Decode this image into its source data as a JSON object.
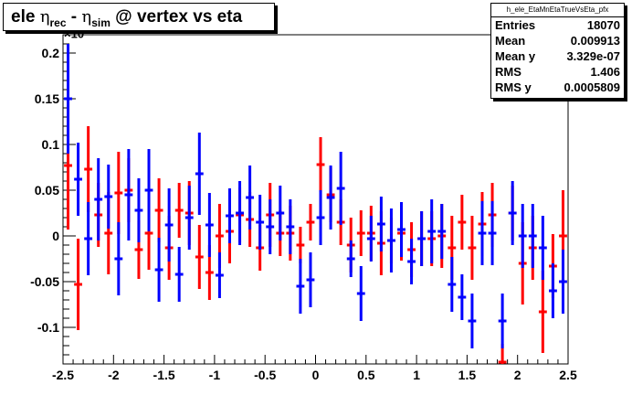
{
  "title": {
    "prefix": "ele ",
    "eta1": "η",
    "sub1": "rec",
    "mid": " - ",
    "eta2": "η",
    "sub2": "sim",
    "suffix": " @ vertex vs eta"
  },
  "stats": {
    "name": "h_ele_EtaMnEtaTrueVsEta_pfx",
    "rows": [
      {
        "label": "Entries",
        "value": "18070"
      },
      {
        "label": "Mean",
        "value": "0.009913"
      },
      {
        "label": "Mean y",
        "value": "3.329e-07"
      },
      {
        "label": "RMS",
        "value": "1.406"
      },
      {
        "label": "RMS y",
        "value": "0.0005809"
      }
    ]
  },
  "axis_multiplier": {
    "base": "×10",
    "exp": "-3"
  },
  "colors": {
    "series_a": "#ff0000",
    "series_b": "#0000ff",
    "frame": "#000000"
  },
  "chart_data": {
    "type": "scatter",
    "xlim": [
      -2.5,
      2.5
    ],
    "ylim": [
      -0.14,
      0.22
    ],
    "xticks": [
      "-2.5",
      "-2",
      "-1.5",
      "-1",
      "-0.5",
      "0",
      "0.5",
      "1",
      "1.5",
      "2",
      "2.5"
    ],
    "xtick_values": [
      -2.5,
      -2,
      -1.5,
      -1,
      -0.5,
      0,
      0.5,
      1,
      1.5,
      2,
      2.5
    ],
    "yticks": [
      "-0.1",
      "-0.05",
      "0",
      "0.05",
      "0.1",
      "0.15",
      "0.2"
    ],
    "ytick_values": [
      -0.1,
      -0.05,
      0,
      0.05,
      0.1,
      0.15,
      0.2
    ],
    "grid": false,
    "series": [
      {
        "color": "#ff0000",
        "points": [
          {
            "x": -2.45,
            "y": 0.077,
            "err": 0.07
          },
          {
            "x": -2.35,
            "y": -0.053,
            "err": 0.05
          },
          {
            "x": -2.25,
            "y": 0.073,
            "err": 0.047
          },
          {
            "x": -2.15,
            "y": 0.023,
            "err": 0.035
          },
          {
            "x": -2.05,
            "y": 0.003,
            "err": 0.045
          },
          {
            "x": -1.95,
            "y": 0.047,
            "err": 0.045
          },
          {
            "x": -1.85,
            "y": 0.05,
            "err": 0.035
          },
          {
            "x": -1.75,
            "y": -0.015,
            "err": 0.032
          },
          {
            "x": -1.65,
            "y": 0.003,
            "err": 0.04
          },
          {
            "x": -1.55,
            "y": 0.028,
            "err": 0.035
          },
          {
            "x": -1.45,
            "y": -0.013,
            "err": 0.035
          },
          {
            "x": -1.35,
            "y": 0.028,
            "err": 0.03
          },
          {
            "x": -1.25,
            "y": 0.025,
            "err": 0.035
          },
          {
            "x": -1.15,
            "y": -0.023,
            "err": 0.035
          },
          {
            "x": -1.05,
            "y": -0.04,
            "err": 0.03
          },
          {
            "x": -0.95,
            "y": 0.0,
            "err": 0.035
          },
          {
            "x": -0.85,
            "y": 0.005,
            "err": 0.035
          },
          {
            "x": -0.75,
            "y": 0.023,
            "err": 0.03
          },
          {
            "x": -0.65,
            "y": 0.018,
            "err": 0.03
          },
          {
            "x": -0.55,
            "y": -0.013,
            "err": 0.025
          },
          {
            "x": -0.45,
            "y": 0.023,
            "err": 0.035
          },
          {
            "x": -0.35,
            "y": 0.003,
            "err": 0.025
          },
          {
            "x": -0.25,
            "y": 0.003,
            "err": 0.03
          },
          {
            "x": -0.15,
            "y": -0.01,
            "err": 0.02
          },
          {
            "x": -0.05,
            "y": 0.015,
            "err": 0.02
          },
          {
            "x": 0.05,
            "y": 0.078,
            "err": 0.03
          },
          {
            "x": 0.15,
            "y": 0.045,
            "err": 0.03
          },
          {
            "x": 0.25,
            "y": 0.015,
            "err": 0.025
          },
          {
            "x": 0.35,
            "y": -0.01,
            "err": 0.03
          },
          {
            "x": 0.45,
            "y": 0.003,
            "err": 0.025
          },
          {
            "x": 0.55,
            "y": 0.003,
            "err": 0.03
          },
          {
            "x": 0.65,
            "y": -0.008,
            "err": 0.035
          },
          {
            "x": 0.75,
            "y": -0.005,
            "err": 0.025
          },
          {
            "x": 0.85,
            "y": 0.003,
            "err": 0.03
          },
          {
            "x": 0.95,
            "y": -0.015,
            "err": 0.03
          },
          {
            "x": 1.05,
            "y": -0.003,
            "err": 0.03
          },
          {
            "x": 1.15,
            "y": -0.003,
            "err": 0.03
          },
          {
            "x": 1.25,
            "y": 0.0,
            "err": 0.035
          },
          {
            "x": 1.35,
            "y": -0.013,
            "err": 0.035
          },
          {
            "x": 1.45,
            "y": 0.015,
            "err": 0.03
          },
          {
            "x": 1.55,
            "y": -0.013,
            "err": 0.035
          },
          {
            "x": 1.65,
            "y": 0.013,
            "err": 0.035
          },
          {
            "x": 1.75,
            "y": 0.023,
            "err": 0.035
          },
          {
            "x": 1.85,
            "y": -0.138,
            "err": 0.02
          },
          {
            "x": 1.95,
            "y": 0.025,
            "err": 0.03
          },
          {
            "x": 2.05,
            "y": -0.03,
            "err": 0.045
          },
          {
            "x": 2.15,
            "y": -0.013,
            "err": 0.035
          },
          {
            "x": 2.25,
            "y": -0.083,
            "err": 0.045
          },
          {
            "x": 2.35,
            "y": -0.033,
            "err": 0.035
          },
          {
            "x": 2.45,
            "y": 0.0,
            "err": 0.05
          }
        ]
      },
      {
        "color": "#0000ff",
        "points": [
          {
            "x": -2.45,
            "y": 0.15,
            "err": 0.06
          },
          {
            "x": -2.35,
            "y": 0.062,
            "err": 0.04
          },
          {
            "x": -2.25,
            "y": -0.003,
            "err": 0.04
          },
          {
            "x": -2.15,
            "y": 0.04,
            "err": 0.045
          },
          {
            "x": -2.05,
            "y": 0.043,
            "err": 0.035
          },
          {
            "x": -1.95,
            "y": -0.025,
            "err": 0.04
          },
          {
            "x": -1.85,
            "y": 0.045,
            "err": 0.05
          },
          {
            "x": -1.75,
            "y": 0.028,
            "err": 0.035
          },
          {
            "x": -1.65,
            "y": 0.05,
            "err": 0.045
          },
          {
            "x": -1.55,
            "y": -0.037,
            "err": 0.035
          },
          {
            "x": -1.45,
            "y": 0.012,
            "err": 0.04
          },
          {
            "x": -1.35,
            "y": -0.042,
            "err": 0.03
          },
          {
            "x": -1.25,
            "y": 0.02,
            "err": 0.035
          },
          {
            "x": -1.15,
            "y": 0.068,
            "err": 0.045
          },
          {
            "x": -1.05,
            "y": 0.012,
            "err": 0.035
          },
          {
            "x": -0.95,
            "y": -0.043,
            "err": 0.025
          },
          {
            "x": -0.85,
            "y": 0.022,
            "err": 0.03
          },
          {
            "x": -0.75,
            "y": 0.025,
            "err": 0.035
          },
          {
            "x": -0.65,
            "y": 0.042,
            "err": 0.035
          },
          {
            "x": -0.55,
            "y": 0.015,
            "err": 0.03
          },
          {
            "x": -0.45,
            "y": 0.01,
            "err": 0.03
          },
          {
            "x": -0.35,
            "y": 0.025,
            "err": 0.03
          },
          {
            "x": -0.25,
            "y": 0.01,
            "err": 0.03
          },
          {
            "x": -0.15,
            "y": -0.055,
            "err": 0.03
          },
          {
            "x": -0.05,
            "y": -0.048,
            "err": 0.03
          },
          {
            "x": 0.05,
            "y": 0.02,
            "err": 0.03
          },
          {
            "x": 0.15,
            "y": 0.042,
            "err": 0.035
          },
          {
            "x": 0.25,
            "y": 0.052,
            "err": 0.04
          },
          {
            "x": 0.35,
            "y": -0.025,
            "err": 0.02
          },
          {
            "x": 0.45,
            "y": -0.063,
            "err": 0.03
          },
          {
            "x": 0.55,
            "y": -0.003,
            "err": 0.025
          },
          {
            "x": 0.65,
            "y": 0.013,
            "err": 0.03
          },
          {
            "x": 0.75,
            "y": -0.005,
            "err": 0.035
          },
          {
            "x": 0.85,
            "y": 0.007,
            "err": 0.03
          },
          {
            "x": 0.95,
            "y": -0.028,
            "err": 0.025
          },
          {
            "x": 1.05,
            "y": -0.003,
            "err": 0.03
          },
          {
            "x": 1.15,
            "y": 0.005,
            "err": 0.035
          },
          {
            "x": 1.25,
            "y": 0.005,
            "err": 0.03
          },
          {
            "x": 1.35,
            "y": -0.053,
            "err": 0.03
          },
          {
            "x": 1.45,
            "y": -0.067,
            "err": 0.025
          },
          {
            "x": 1.55,
            "y": -0.093,
            "err": 0.03
          },
          {
            "x": 1.65,
            "y": 0.003,
            "err": 0.035
          },
          {
            "x": 1.75,
            "y": 0.003,
            "err": 0.035
          },
          {
            "x": 1.85,
            "y": -0.093,
            "err": 0.03
          },
          {
            "x": 1.95,
            "y": 0.025,
            "err": 0.035
          },
          {
            "x": 2.05,
            "y": 0.0,
            "err": 0.035
          },
          {
            "x": 2.15,
            "y": 0.0,
            "err": 0.035
          },
          {
            "x": 2.25,
            "y": -0.013,
            "err": 0.035
          },
          {
            "x": 2.35,
            "y": -0.06,
            "err": 0.03
          },
          {
            "x": 2.45,
            "y": -0.05,
            "err": 0.035
          }
        ]
      }
    ]
  }
}
